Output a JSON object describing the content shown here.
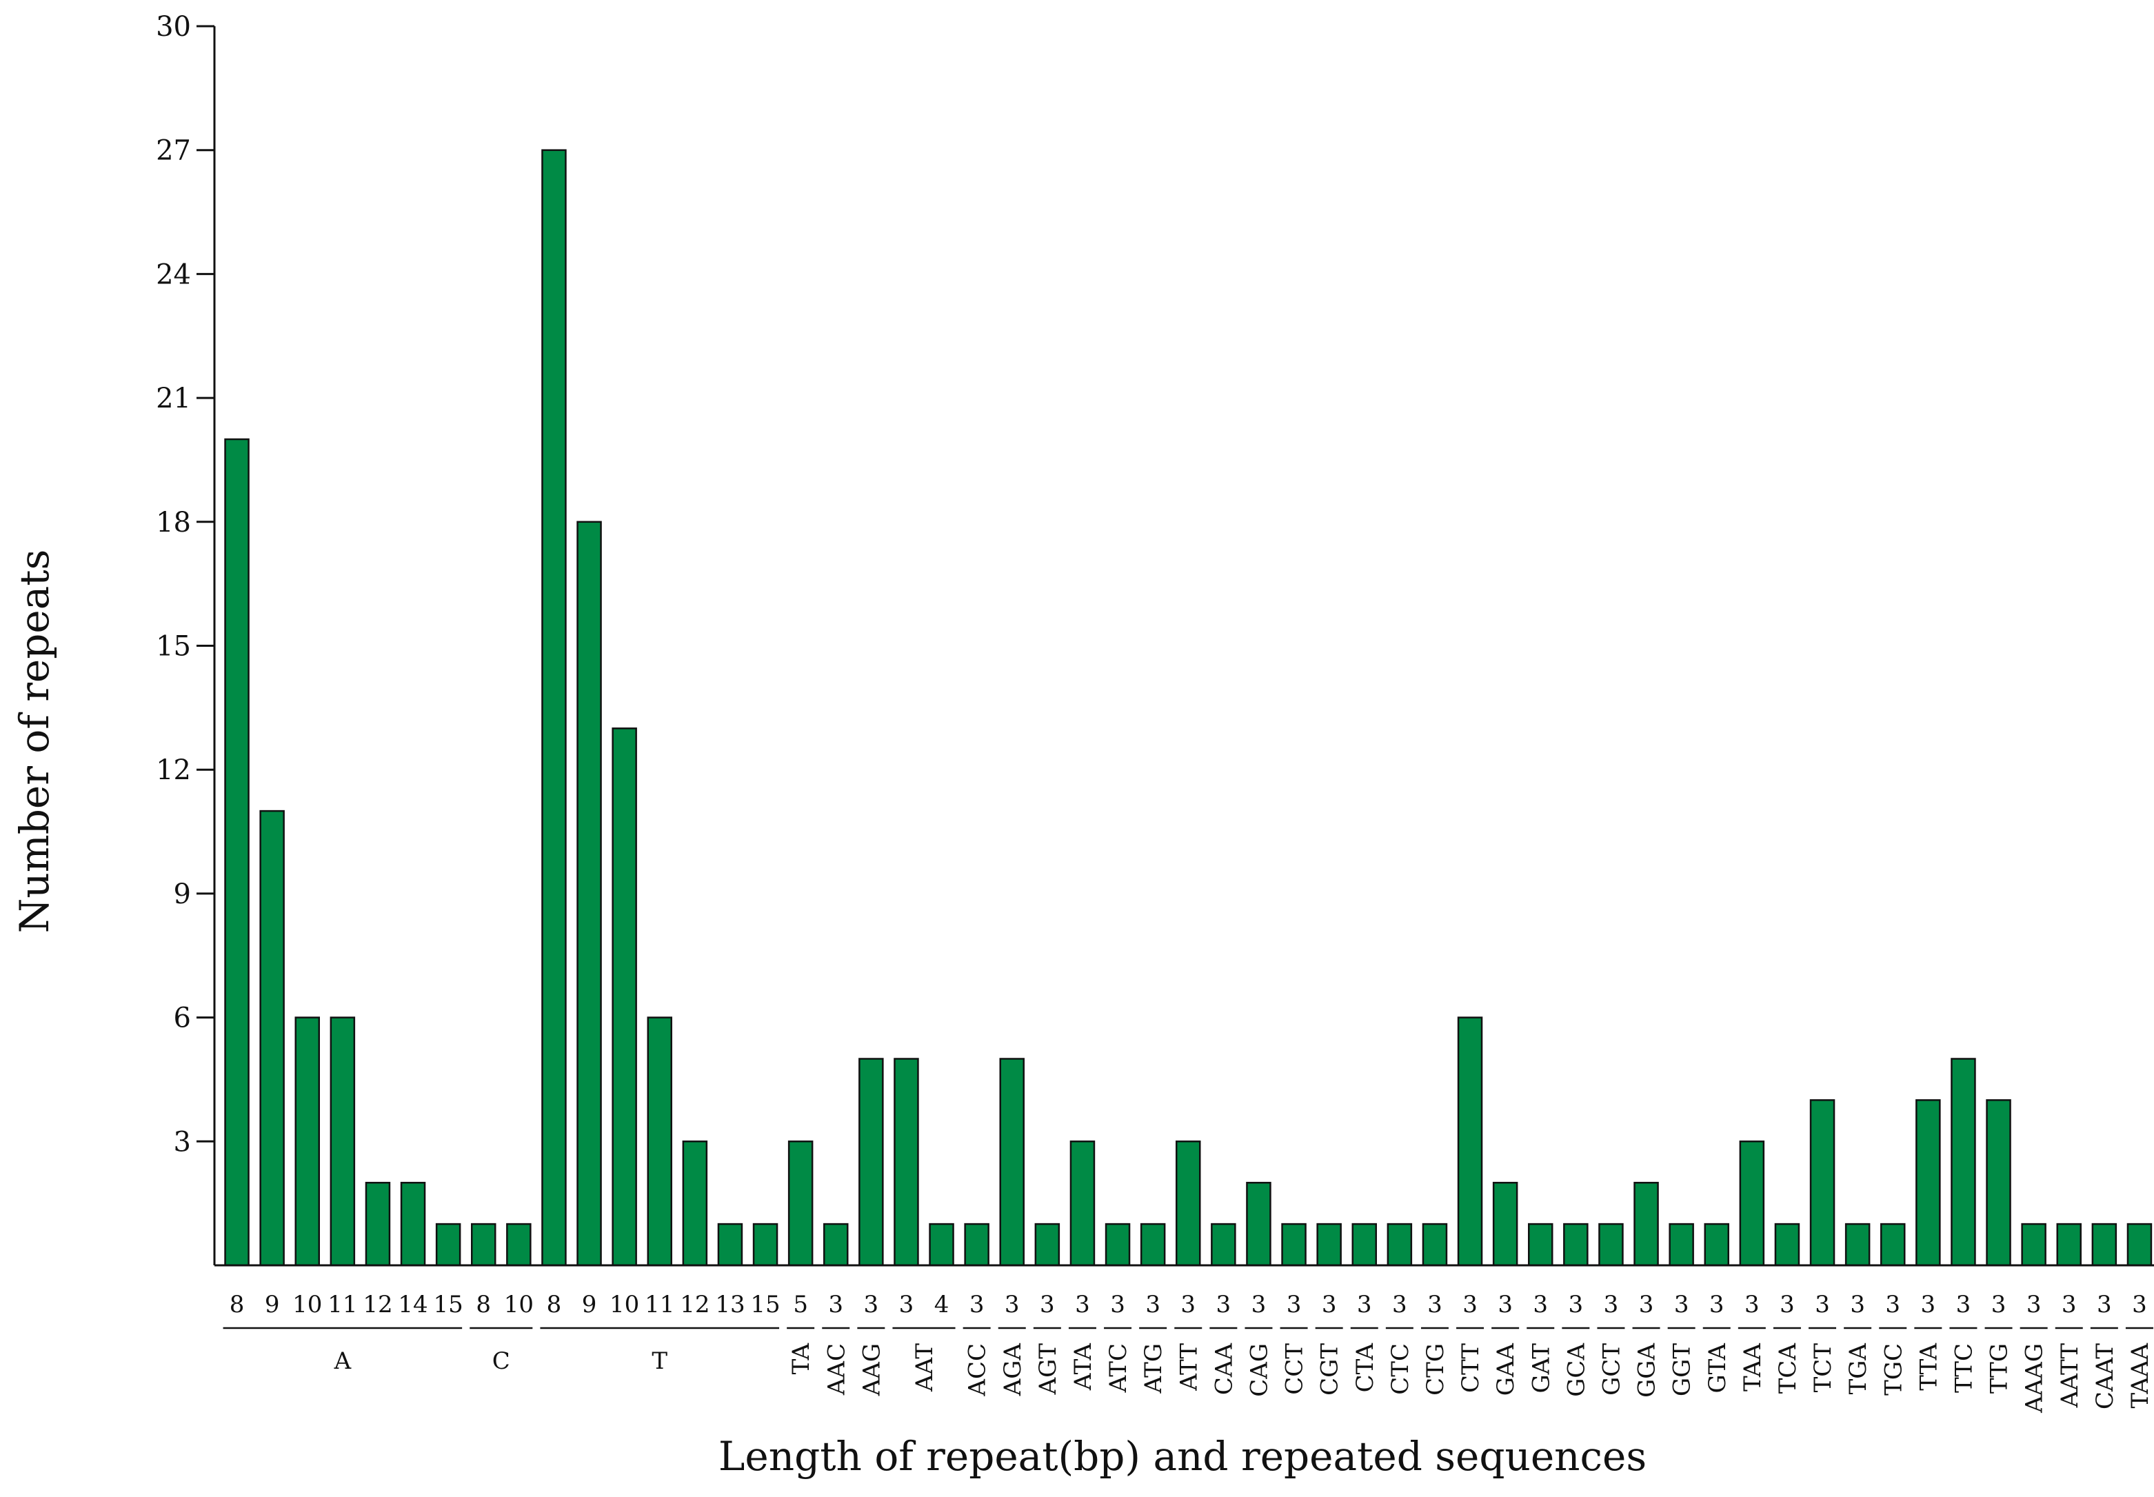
{
  "chart_data": {
    "type": "bar",
    "title": "",
    "ylabel": "Number of repeats",
    "xlabel": "Length of repeat(bp) and repeated sequences",
    "ylim": [
      0,
      30
    ],
    "yticks": [
      3,
      6,
      9,
      12,
      15,
      18,
      21,
      24,
      27,
      30
    ],
    "grid": false,
    "legend": "none",
    "bar_color": "#008a45",
    "groups": [
      {
        "label": "A",
        "lengths": [
          "8",
          "9",
          "10",
          "11",
          "12",
          "14",
          "15"
        ],
        "values": [
          20,
          11,
          6,
          6,
          2,
          2,
          1
        ]
      },
      {
        "label": "C",
        "lengths": [
          "8",
          "10"
        ],
        "values": [
          1,
          1
        ]
      },
      {
        "label": "T",
        "lengths": [
          "8",
          "9",
          "10",
          "11",
          "12",
          "13",
          "15"
        ],
        "values": [
          27,
          18,
          13,
          6,
          3,
          1,
          1
        ]
      },
      {
        "label": "TA",
        "lengths": [
          "5"
        ],
        "values": [
          3
        ]
      },
      {
        "label": "AAC",
        "lengths": [
          "3"
        ],
        "values": [
          1
        ]
      },
      {
        "label": "AAG",
        "lengths": [
          "3"
        ],
        "values": [
          5
        ]
      },
      {
        "label": "AAT",
        "lengths": [
          "3",
          "4"
        ],
        "values": [
          5,
          1
        ]
      },
      {
        "label": "ACC",
        "lengths": [
          "3"
        ],
        "values": [
          1
        ]
      },
      {
        "label": "AGA",
        "lengths": [
          "3"
        ],
        "values": [
          5
        ]
      },
      {
        "label": "AGT",
        "lengths": [
          "3"
        ],
        "values": [
          1
        ]
      },
      {
        "label": "ATA",
        "lengths": [
          "3"
        ],
        "values": [
          3
        ]
      },
      {
        "label": "ATC",
        "lengths": [
          "3"
        ],
        "values": [
          1
        ]
      },
      {
        "label": "ATG",
        "lengths": [
          "3"
        ],
        "values": [
          1
        ]
      },
      {
        "label": "ATT",
        "lengths": [
          "3"
        ],
        "values": [
          3
        ]
      },
      {
        "label": "CAA",
        "lengths": [
          "3"
        ],
        "values": [
          1
        ]
      },
      {
        "label": "CAG",
        "lengths": [
          "3"
        ],
        "values": [
          2
        ]
      },
      {
        "label": "CCT",
        "lengths": [
          "3"
        ],
        "values": [
          1
        ]
      },
      {
        "label": "CGT",
        "lengths": [
          "3"
        ],
        "values": [
          1
        ]
      },
      {
        "label": "CTA",
        "lengths": [
          "3"
        ],
        "values": [
          1
        ]
      },
      {
        "label": "CTC",
        "lengths": [
          "3"
        ],
        "values": [
          1
        ]
      },
      {
        "label": "CTG",
        "lengths": [
          "3"
        ],
        "values": [
          1
        ]
      },
      {
        "label": "CTT",
        "lengths": [
          "3"
        ],
        "values": [
          6
        ]
      },
      {
        "label": "GAA",
        "lengths": [
          "3"
        ],
        "values": [
          2
        ]
      },
      {
        "label": "GAT",
        "lengths": [
          "3"
        ],
        "values": [
          1
        ]
      },
      {
        "label": "GCA",
        "lengths": [
          "3"
        ],
        "values": [
          1
        ]
      },
      {
        "label": "GCT",
        "lengths": [
          "3"
        ],
        "values": [
          1
        ]
      },
      {
        "label": "GGA",
        "lengths": [
          "3"
        ],
        "values": [
          2
        ]
      },
      {
        "label": "GGT",
        "lengths": [
          "3"
        ],
        "values": [
          1
        ]
      },
      {
        "label": "GTA",
        "lengths": [
          "3"
        ],
        "values": [
          1
        ]
      },
      {
        "label": "TAA",
        "lengths": [
          "3"
        ],
        "values": [
          3
        ]
      },
      {
        "label": "TCA",
        "lengths": [
          "3"
        ],
        "values": [
          1
        ]
      },
      {
        "label": "TCT",
        "lengths": [
          "3"
        ],
        "values": [
          4
        ]
      },
      {
        "label": "TGA",
        "lengths": [
          "3"
        ],
        "values": [
          1
        ]
      },
      {
        "label": "TGC",
        "lengths": [
          "3"
        ],
        "values": [
          1
        ]
      },
      {
        "label": "TTA",
        "lengths": [
          "3"
        ],
        "values": [
          4
        ]
      },
      {
        "label": "TTC",
        "lengths": [
          "3"
        ],
        "values": [
          5
        ]
      },
      {
        "label": "TTG",
        "lengths": [
          "3"
        ],
        "values": [
          4
        ]
      },
      {
        "label": "AAAG",
        "lengths": [
          "3"
        ],
        "values": [
          1
        ]
      },
      {
        "label": "AATT",
        "lengths": [
          "3"
        ],
        "values": [
          1
        ]
      },
      {
        "label": "CAAT",
        "lengths": [
          "3"
        ],
        "values": [
          1
        ]
      },
      {
        "label": "TAAA",
        "lengths": [
          "3"
        ],
        "values": [
          1
        ]
      }
    ]
  }
}
